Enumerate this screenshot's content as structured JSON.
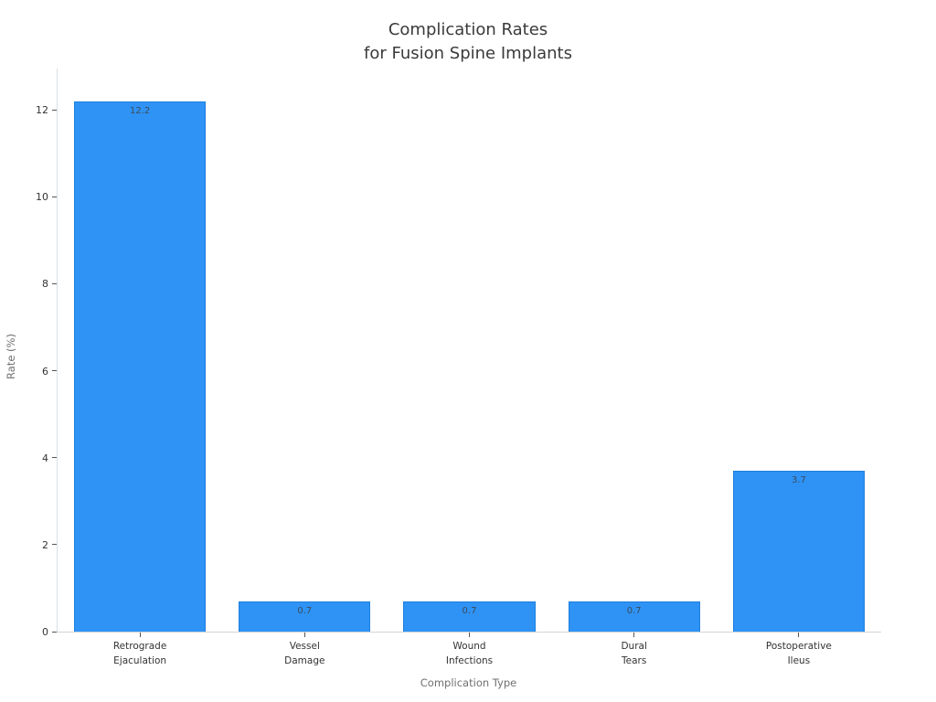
{
  "chart_data": {
    "type": "bar",
    "title": "Complication Rates\nfor Fusion Spine Implants",
    "xlabel": "Complication Type",
    "ylabel": "Rate (%)",
    "categories": [
      "Retrograde\nEjaculation",
      "Vessel\nDamage",
      "Wound\nInfections",
      "Dural\nTears",
      "Postoperative\nIleus"
    ],
    "values": [
      12.2,
      0.7,
      0.7,
      0.7,
      3.7
    ],
    "value_labels": [
      "12.2",
      "0.7",
      "0.7",
      "0.7",
      "3.7"
    ],
    "yticks": [
      0,
      2,
      4,
      6,
      8,
      10,
      12
    ],
    "ylim": [
      0,
      12.95
    ],
    "grid": false,
    "legend": "none",
    "bar_color": "#2e93f5",
    "bar_edge_color": "#1d7fdd",
    "title_color": "#3a3a3a",
    "axis_label_color": "#707070",
    "tick_label_color": "#333333",
    "value_label_color": "#3f4a5a",
    "background_color": "#ffffff"
  }
}
